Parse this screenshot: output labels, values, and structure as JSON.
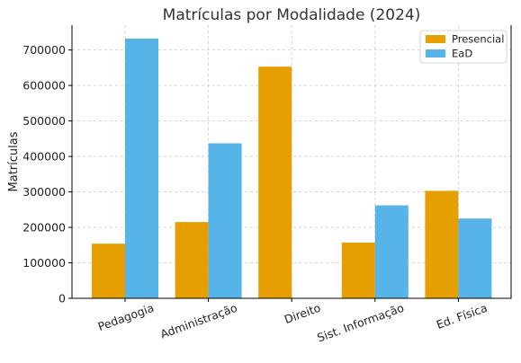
{
  "chart_data": {
    "type": "bar",
    "title": "Matrículas por Modalidade (2024)",
    "xlabel": "",
    "ylabel": "Matrículas",
    "categories": [
      "Pedagogia",
      "Administração",
      "Direito",
      "Sist. Informação",
      "Ed. Física"
    ],
    "series": [
      {
        "name": "Presencial",
        "color": "#E69F00",
        "values": [
          154000,
          215000,
          653000,
          157000,
          303000
        ]
      },
      {
        "name": "EaD",
        "color": "#56B4E9",
        "values": [
          732000,
          437000,
          0,
          262000,
          225000
        ]
      }
    ],
    "ylim": [
      0,
      770000
    ],
    "yticks": [
      0,
      100000,
      200000,
      300000,
      400000,
      500000,
      600000,
      700000
    ],
    "grid": true,
    "legend_position": "top-right"
  }
}
